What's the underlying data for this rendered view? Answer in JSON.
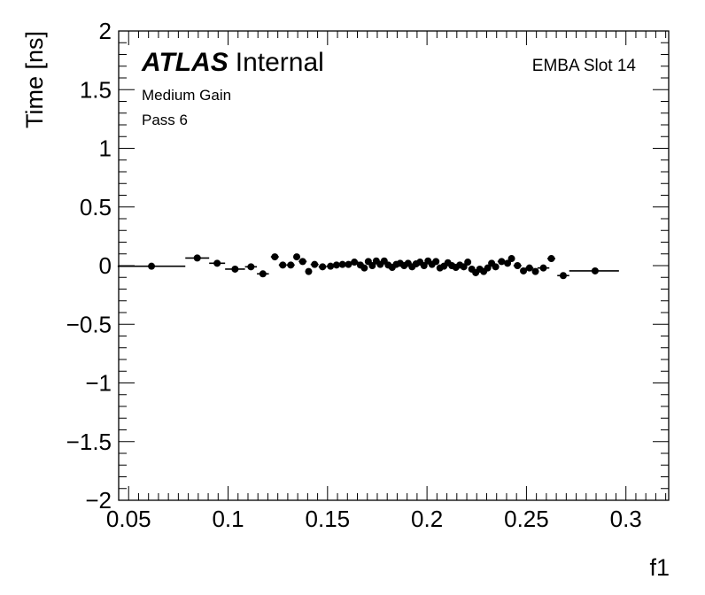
{
  "chart_data": {
    "type": "scatter",
    "xlabel": "f1",
    "ylabel": "Time [ns]",
    "xlim": [
      0.045,
      0.3215
    ],
    "ylim": [
      -2,
      2
    ],
    "x_ticks": [
      {
        "value": 0.05,
        "label": "0.05"
      },
      {
        "value": 0.1,
        "label": "0.1"
      },
      {
        "value": 0.15,
        "label": "0.15"
      },
      {
        "value": 0.2,
        "label": "0.2"
      },
      {
        "value": 0.25,
        "label": "0.25"
      },
      {
        "value": 0.3,
        "label": "0.3"
      }
    ],
    "y_ticks": [
      {
        "value": 2,
        "label": "2"
      },
      {
        "value": 1.5,
        "label": "1.5"
      },
      {
        "value": 1,
        "label": "1"
      },
      {
        "value": 0.5,
        "label": "0.5"
      },
      {
        "value": 0,
        "label": "0"
      },
      {
        "value": -0.5,
        "label": "−0.5"
      },
      {
        "value": -1,
        "label": "−1"
      },
      {
        "value": -1.5,
        "label": "−1.5"
      },
      {
        "value": -2,
        "label": "−2"
      }
    ],
    "grid": false,
    "annotations": {
      "atlas": "ATLAS",
      "atlas_suffix": "Internal",
      "line1": "Medium Gain",
      "line2": "Pass 6",
      "right": "EMBA Slot 14"
    },
    "points": [
      {
        "x": 0.0615,
        "y": -0.005,
        "xlo": 0.0445,
        "xhi": 0.0785,
        "yerr": 0.01
      },
      {
        "x": 0.0845,
        "y": 0.065,
        "xlo": 0.0785,
        "xhi": 0.0905,
        "yerr": 0.01
      },
      {
        "x": 0.0945,
        "y": 0.02,
        "xlo": 0.0905,
        "xhi": 0.0985,
        "yerr": 0.01
      },
      {
        "x": 0.1035,
        "y": -0.03,
        "xlo": 0.0985,
        "xhi": 0.1085,
        "yerr": 0.01
      },
      {
        "x": 0.1115,
        "y": -0.01,
        "xlo": 0.1085,
        "xhi": 0.1145,
        "yerr": 0.01
      },
      {
        "x": 0.1175,
        "y": -0.07,
        "xlo": 0.1145,
        "xhi": 0.1205,
        "yerr": 0.01
      },
      {
        "x": 0.1235,
        "y": 0.075,
        "xlo": 0.1215,
        "xhi": 0.1255,
        "yerr": 0.015
      },
      {
        "x": 0.1275,
        "y": 0.005,
        "xlo": 0.1255,
        "xhi": 0.1295,
        "yerr": 0.015
      },
      {
        "x": 0.1315,
        "y": 0.005,
        "xlo": 0.1295,
        "xhi": 0.1335,
        "yerr": 0.015
      },
      {
        "x": 0.1345,
        "y": 0.075,
        "xlo": 0.1335,
        "xhi": 0.1355,
        "yerr": 0.015
      },
      {
        "x": 0.1375,
        "y": 0.035,
        "xlo": 0.1355,
        "xhi": 0.1395,
        "yerr": 0.015
      },
      {
        "x": 0.1405,
        "y": -0.05,
        "xlo": 0.1395,
        "xhi": 0.1415,
        "yerr": 0.015
      },
      {
        "x": 0.1435,
        "y": 0.01,
        "xlo": 0.1415,
        "xhi": 0.1455,
        "yerr": 0.015
      },
      {
        "x": 0.1475,
        "y": -0.01,
        "xlo": 0.1455,
        "xhi": 0.1495,
        "yerr": 0.015
      },
      {
        "x": 0.1515,
        "y": -0.005,
        "xlo": 0.1495,
        "xhi": 0.1535,
        "yerr": 0.015
      },
      {
        "x": 0.1545,
        "y": 0.005,
        "xlo": 0.1535,
        "xhi": 0.1555,
        "yerr": 0.015
      },
      {
        "x": 0.1575,
        "y": 0.01,
        "xlo": 0.1555,
        "xhi": 0.1595,
        "yerr": 0.015
      },
      {
        "x": 0.1605,
        "y": 0.01,
        "xlo": 0.1595,
        "xhi": 0.1615,
        "yerr": 0.015
      },
      {
        "x": 0.1635,
        "y": 0.03,
        "xlo": 0.1615,
        "xhi": 0.1655,
        "yerr": 0.015
      },
      {
        "x": 0.1665,
        "y": 0.005,
        "xlo": 0.1655,
        "xhi": 0.1675,
        "yerr": 0.02
      },
      {
        "x": 0.1685,
        "y": -0.02,
        "xlo": 0.1675,
        "xhi": 0.1695,
        "yerr": 0.02
      },
      {
        "x": 0.1705,
        "y": 0.035,
        "xlo": 0.1695,
        "xhi": 0.1715,
        "yerr": 0.02
      },
      {
        "x": 0.1725,
        "y": 0.0,
        "xlo": 0.1715,
        "xhi": 0.1735,
        "yerr": 0.02
      },
      {
        "x": 0.1745,
        "y": 0.04,
        "xlo": 0.1735,
        "xhi": 0.1755,
        "yerr": 0.02
      },
      {
        "x": 0.1765,
        "y": 0.01,
        "xlo": 0.1755,
        "xhi": 0.1775,
        "yerr": 0.02
      },
      {
        "x": 0.1785,
        "y": 0.04,
        "xlo": 0.1775,
        "xhi": 0.1795,
        "yerr": 0.02
      },
      {
        "x": 0.1805,
        "y": 0.005,
        "xlo": 0.1795,
        "xhi": 0.1815,
        "yerr": 0.02
      },
      {
        "x": 0.1825,
        "y": -0.015,
        "xlo": 0.1815,
        "xhi": 0.1835,
        "yerr": 0.02
      },
      {
        "x": 0.1845,
        "y": 0.01,
        "xlo": 0.1835,
        "xhi": 0.1855,
        "yerr": 0.02
      },
      {
        "x": 0.1865,
        "y": 0.02,
        "xlo": 0.1855,
        "xhi": 0.1875,
        "yerr": 0.02
      },
      {
        "x": 0.1885,
        "y": 0.0,
        "xlo": 0.1875,
        "xhi": 0.1895,
        "yerr": 0.02
      },
      {
        "x": 0.1905,
        "y": 0.02,
        "xlo": 0.1895,
        "xhi": 0.1915,
        "yerr": 0.02
      },
      {
        "x": 0.1925,
        "y": -0.01,
        "xlo": 0.1915,
        "xhi": 0.1935,
        "yerr": 0.02
      },
      {
        "x": 0.1945,
        "y": 0.015,
        "xlo": 0.1935,
        "xhi": 0.1955,
        "yerr": 0.02
      },
      {
        "x": 0.1965,
        "y": 0.03,
        "xlo": 0.1955,
        "xhi": 0.1975,
        "yerr": 0.02
      },
      {
        "x": 0.1985,
        "y": 0.0,
        "xlo": 0.1975,
        "xhi": 0.1995,
        "yerr": 0.02
      },
      {
        "x": 0.2005,
        "y": 0.04,
        "xlo": 0.1995,
        "xhi": 0.2015,
        "yerr": 0.02
      },
      {
        "x": 0.2025,
        "y": 0.01,
        "xlo": 0.2015,
        "xhi": 0.2035,
        "yerr": 0.02
      },
      {
        "x": 0.2045,
        "y": 0.035,
        "xlo": 0.2035,
        "xhi": 0.2055,
        "yerr": 0.02
      },
      {
        "x": 0.2065,
        "y": -0.02,
        "xlo": 0.2055,
        "xhi": 0.2075,
        "yerr": 0.02
      },
      {
        "x": 0.2085,
        "y": -0.005,
        "xlo": 0.2075,
        "xhi": 0.2095,
        "yerr": 0.02
      },
      {
        "x": 0.2105,
        "y": 0.025,
        "xlo": 0.2095,
        "xhi": 0.2115,
        "yerr": 0.02
      },
      {
        "x": 0.2125,
        "y": 0.0,
        "xlo": 0.2115,
        "xhi": 0.2135,
        "yerr": 0.02
      },
      {
        "x": 0.2145,
        "y": -0.015,
        "xlo": 0.2135,
        "xhi": 0.2155,
        "yerr": 0.02
      },
      {
        "x": 0.2165,
        "y": 0.005,
        "xlo": 0.2155,
        "xhi": 0.2175,
        "yerr": 0.02
      },
      {
        "x": 0.2185,
        "y": -0.01,
        "xlo": 0.2175,
        "xhi": 0.2195,
        "yerr": 0.02
      },
      {
        "x": 0.2205,
        "y": 0.03,
        "xlo": 0.2195,
        "xhi": 0.2215,
        "yerr": 0.02
      },
      {
        "x": 0.2225,
        "y": -0.03,
        "xlo": 0.2215,
        "xhi": 0.2235,
        "yerr": 0.02
      },
      {
        "x": 0.2245,
        "y": -0.06,
        "xlo": 0.2235,
        "xhi": 0.2255,
        "yerr": 0.02
      },
      {
        "x": 0.2265,
        "y": -0.03,
        "xlo": 0.2255,
        "xhi": 0.2275,
        "yerr": 0.02
      },
      {
        "x": 0.2285,
        "y": -0.05,
        "xlo": 0.2275,
        "xhi": 0.2295,
        "yerr": 0.02
      },
      {
        "x": 0.2305,
        "y": -0.02,
        "xlo": 0.2295,
        "xhi": 0.2315,
        "yerr": 0.02
      },
      {
        "x": 0.2325,
        "y": 0.02,
        "xlo": 0.2315,
        "xhi": 0.2335,
        "yerr": 0.02
      },
      {
        "x": 0.2345,
        "y": -0.01,
        "xlo": 0.2335,
        "xhi": 0.2355,
        "yerr": 0.02
      },
      {
        "x": 0.2375,
        "y": 0.035,
        "xlo": 0.2355,
        "xhi": 0.2395,
        "yerr": 0.015
      },
      {
        "x": 0.2405,
        "y": 0.02,
        "xlo": 0.2395,
        "xhi": 0.2415,
        "yerr": 0.015
      },
      {
        "x": 0.2425,
        "y": 0.06,
        "xlo": 0.2415,
        "xhi": 0.2435,
        "yerr": 0.015
      },
      {
        "x": 0.2455,
        "y": 0.0,
        "xlo": 0.2435,
        "xhi": 0.2475,
        "yerr": 0.015
      },
      {
        "x": 0.2485,
        "y": -0.045,
        "xlo": 0.2475,
        "xhi": 0.2495,
        "yerr": 0.015
      },
      {
        "x": 0.2515,
        "y": -0.02,
        "xlo": 0.2495,
        "xhi": 0.2535,
        "yerr": 0.015
      },
      {
        "x": 0.2545,
        "y": -0.05,
        "xlo": 0.2535,
        "xhi": 0.2555,
        "yerr": 0.015
      },
      {
        "x": 0.2585,
        "y": -0.02,
        "xlo": 0.2555,
        "xhi": 0.2615,
        "yerr": 0.015
      },
      {
        "x": 0.2625,
        "y": 0.06,
        "xlo": 0.2605,
        "xhi": 0.2645,
        "yerr": 0.015
      },
      {
        "x": 0.2685,
        "y": -0.085,
        "xlo": 0.2655,
        "xhi": 0.2715,
        "yerr": 0.01
      },
      {
        "x": 0.2845,
        "y": -0.045,
        "xlo": 0.2715,
        "xhi": 0.2965,
        "yerr": 0.01
      }
    ]
  }
}
